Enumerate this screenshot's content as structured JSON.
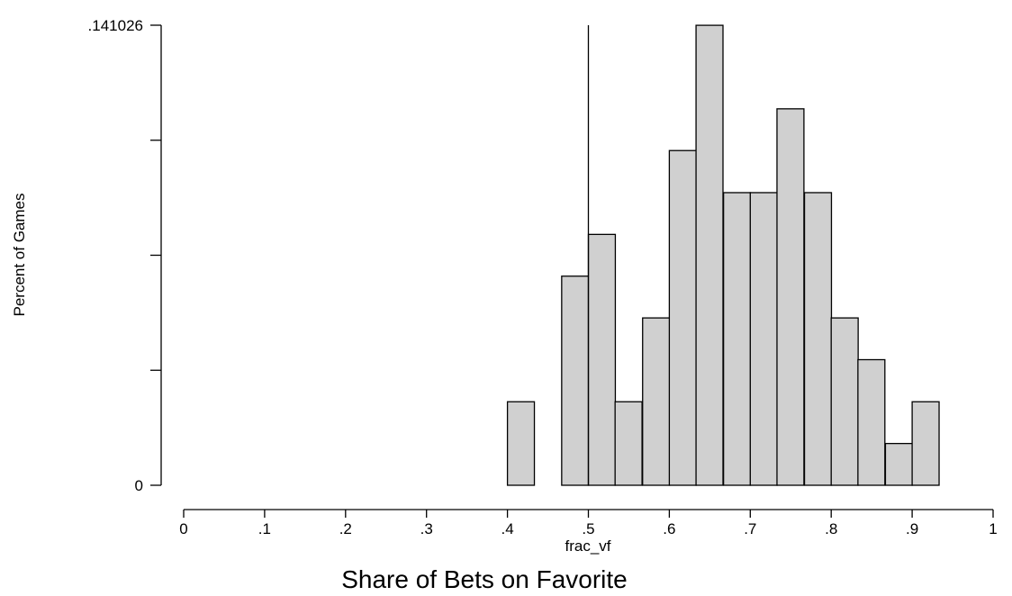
{
  "chart_data": {
    "type": "bar",
    "subtype": "histogram",
    "title": "",
    "caption": "Share of Bets on Favorite",
    "xlabel": "frac_vf",
    "ylabel": "Percent of Games",
    "xlim": [
      0,
      1
    ],
    "ylim": [
      0,
      0.141026
    ],
    "x_ticks": [
      0,
      0.1,
      0.2,
      0.3,
      0.4,
      0.5,
      0.6,
      0.7,
      0.8,
      0.9,
      1
    ],
    "x_tick_labels": [
      "0",
      ".1",
      ".2",
      ".3",
      ".4",
      ".5",
      ".6",
      ".7",
      ".8",
      ".9",
      "1"
    ],
    "y_ticks": [
      0,
      0.035256,
      0.070513,
      0.105769,
      0.141026
    ],
    "y_tick_labels": [
      "0",
      "",
      "",
      "",
      ".141026"
    ],
    "bin_width": 0.0333,
    "bins": [
      {
        "start": 0.4,
        "value": 0.0256
      },
      {
        "start": 0.467,
        "value": 0.0641
      },
      {
        "start": 0.5,
        "value": 0.0769
      },
      {
        "start": 0.533,
        "value": 0.0256
      },
      {
        "start": 0.567,
        "value": 0.0513
      },
      {
        "start": 0.6,
        "value": 0.1026
      },
      {
        "start": 0.633,
        "value": 0.141
      },
      {
        "start": 0.667,
        "value": 0.0897
      },
      {
        "start": 0.7,
        "value": 0.0897
      },
      {
        "start": 0.733,
        "value": 0.1154
      },
      {
        "start": 0.767,
        "value": 0.0897
      },
      {
        "start": 0.8,
        "value": 0.0513
      },
      {
        "start": 0.833,
        "value": 0.0385
      },
      {
        "start": 0.867,
        "value": 0.0128
      },
      {
        "start": 0.9,
        "value": 0.0256
      }
    ],
    "reference_line_x": 0.5,
    "bar_fill": "#d0d0d0",
    "bar_stroke": "#000000",
    "grid": false,
    "legend": "none"
  }
}
